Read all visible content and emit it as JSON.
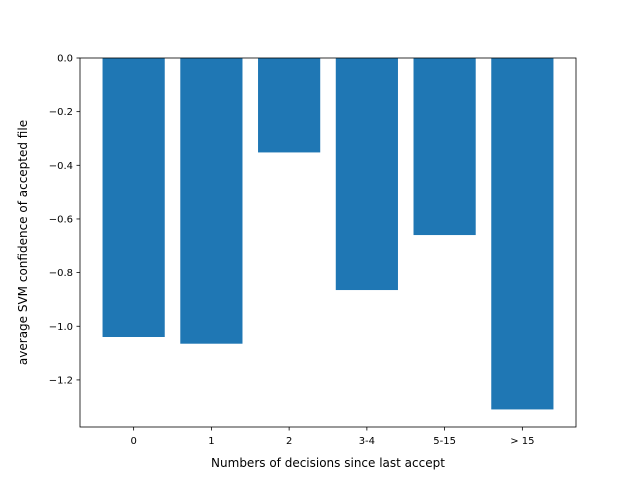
{
  "chart_data": {
    "type": "bar",
    "title": "",
    "xlabel": "Numbers of decisions since last accept",
    "ylabel": "average SVM confidence of accepted file",
    "categories": [
      "0",
      "1",
      "2",
      "3-4",
      "5-15",
      "> 15"
    ],
    "values": [
      -1.04,
      -1.065,
      -0.352,
      -0.865,
      -0.66,
      -1.31
    ],
    "ylim": [
      -1.3755,
      0.0
    ],
    "yticks": [
      0.0,
      -0.2,
      -0.4,
      -0.6,
      -0.8,
      -1.0,
      -1.2
    ],
    "ytick_labels": [
      "0.0",
      "−0.2",
      "−0.4",
      "−0.6",
      "−0.8",
      "−1.0",
      "−1.2"
    ],
    "grid": false,
    "legend": "none",
    "bar_color": "#1f77b4"
  }
}
